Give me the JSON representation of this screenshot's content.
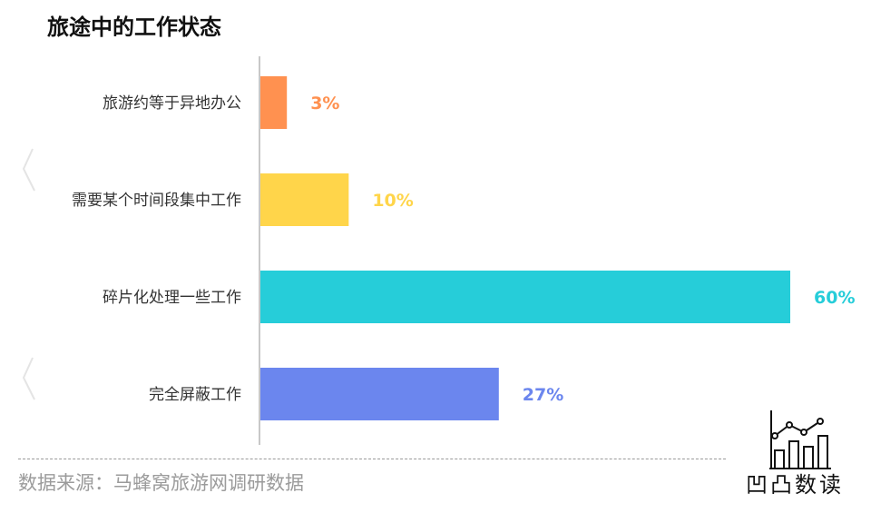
{
  "header": {
    "title": "旅途中的工作状态"
  },
  "chart_data": {
    "type": "bar",
    "orientation": "horizontal",
    "title": "旅途中的工作状态",
    "categories": [
      "旅游约等于异地办公",
      "需要某个时间段集中工作",
      "碎片化处理一些工作",
      "完全屏蔽工作"
    ],
    "values": [
      3,
      10,
      60,
      27
    ],
    "value_labels": [
      "3%",
      "10%",
      "60%",
      "27%"
    ],
    "colors": [
      "#FF9150",
      "#FFD54A",
      "#26CDD9",
      "#6B86EE"
    ],
    "xlim": [
      0,
      60
    ],
    "grid": false,
    "legend": "none"
  },
  "footer": {
    "source": "数据来源：马蜂窝旅游网调研数据",
    "brand": "凹凸数读",
    "brand_icon": "bar-line-chart-logo"
  }
}
